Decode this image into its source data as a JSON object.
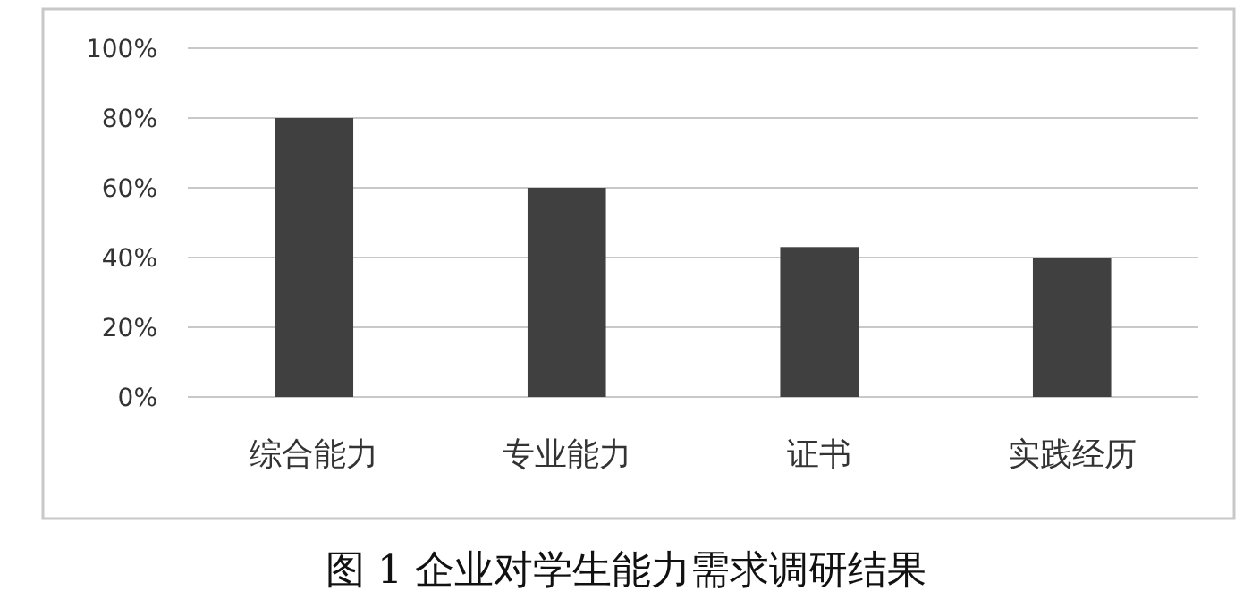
{
  "chart_data": {
    "type": "bar",
    "title": "图 1  企业对学生能力需求调研结果",
    "categories": [
      "综合能力",
      "专业能力",
      "证书",
      "实践经历"
    ],
    "values": [
      80,
      60,
      43,
      40
    ],
    "color": "#404040",
    "ylim": [
      0,
      100
    ],
    "yticks": [
      {
        "value": 0,
        "label": "0%"
      },
      {
        "value": 20,
        "label": "20%"
      },
      {
        "value": 40,
        "label": "40%"
      },
      {
        "value": 60,
        "label": "60%"
      },
      {
        "value": 80,
        "label": "80%"
      },
      {
        "value": 100,
        "label": "100%"
      }
    ],
    "grid": "y"
  }
}
